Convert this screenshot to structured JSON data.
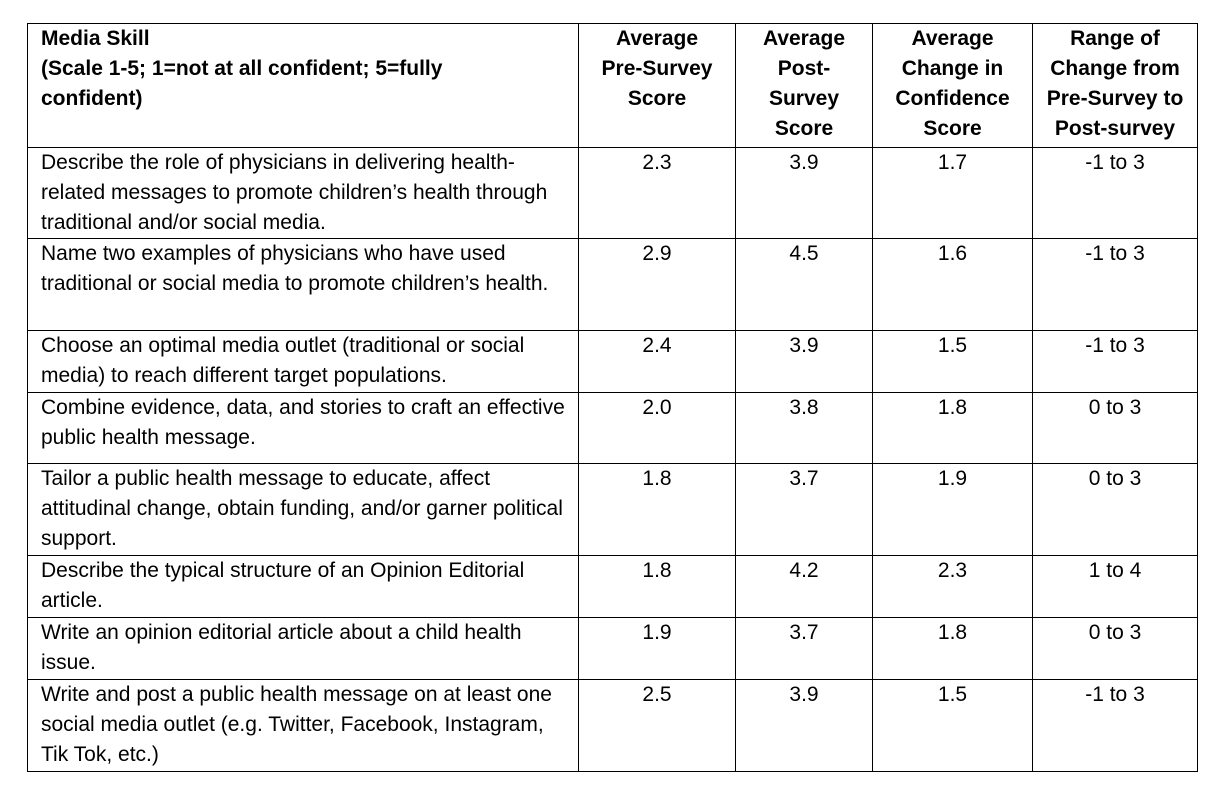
{
  "table": {
    "headers": {
      "skill": [
        "Media Skill",
        "(Scale 1-5; 1=not at all confident; 5=fully",
        "confident)"
      ],
      "pre": [
        "Average",
        "Pre-Survey",
        "Score"
      ],
      "post": [
        "Average",
        "Post-",
        "Survey",
        "Score"
      ],
      "change": [
        "Average",
        "Change in",
        "Confidence",
        "Score"
      ],
      "range": [
        "Range of",
        "Change from",
        "Pre-Survey to",
        "Post-survey"
      ]
    },
    "rows": [
      {
        "skill": "Describe the role of physicians in delivering health-related messages to promote children’s health through traditional and/or social media.",
        "pre": "2.3",
        "post": "3.9",
        "change": "1.7",
        "range": "-1 to 3"
      },
      {
        "skill": "Name two examples of physicians who have used traditional or social media to promote children’s health.",
        "pre": "2.9",
        "post": "4.5",
        "change": "1.6",
        "range": "-1 to 3"
      },
      {
        "skill": "Choose an optimal media outlet (traditional or social media) to reach different target populations.",
        "pre": "2.4",
        "post": "3.9",
        "change": "1.5",
        "range": "-1 to 3"
      },
      {
        "skill": "Combine evidence, data, and stories to craft an effective public health message.",
        "pre": "2.0",
        "post": "3.8",
        "change": "1.8",
        "range": "0 to 3"
      },
      {
        "skill": "Tailor a public health message to educate, affect attitudinal change, obtain funding, and/or garner political support.",
        "pre": "1.8",
        "post": "3.7",
        "change": "1.9",
        "range": "0 to 3"
      },
      {
        "skill": "Describe the typical structure of an Opinion Editorial article.",
        "pre": "1.8",
        "post": "4.2",
        "change": "2.3",
        "range": "1 to 4"
      },
      {
        "skill": "Write an opinion editorial article about a child health issue.",
        "pre": "1.9",
        "post": "3.7",
        "change": "1.8",
        "range": "0 to 3"
      },
      {
        "skill": "Write and post a public health message on at least one social media outlet (e.g. Twitter, Facebook, Instagram, Tik Tok, etc.)",
        "pre": "2.5",
        "post": "3.9",
        "change": "1.5",
        "range": "-1 to 3"
      }
    ]
  }
}
